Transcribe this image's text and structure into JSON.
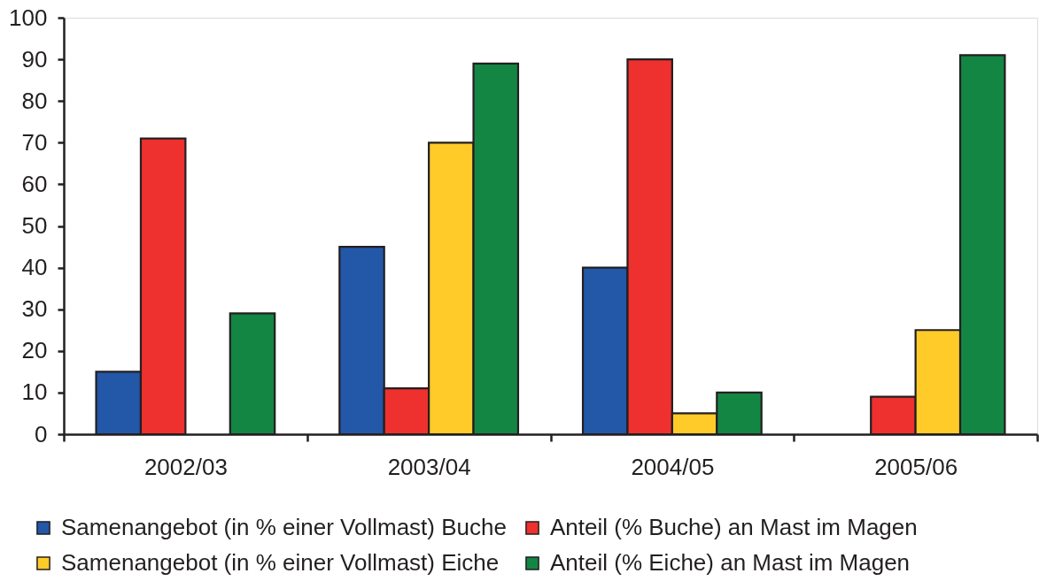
{
  "chart_data": {
    "type": "bar",
    "categories": [
      "2002/03",
      "2003/04",
      "2004/05",
      "2005/06"
    ],
    "series": [
      {
        "name": "Samenangebot (in % einer Vollmast) Buche",
        "color": "#2357a8",
        "values": [
          15,
          45,
          40,
          null
        ]
      },
      {
        "name": "Anteil (% Buche) an Mast im Magen",
        "color": "#ee312e",
        "values": [
          71,
          11,
          90,
          9
        ]
      },
      {
        "name": "Samenangebot (in % einer Vollmast) Eiche",
        "color": "#ffcb29",
        "values": [
          null,
          70,
          5,
          25
        ]
      },
      {
        "name": "Anteil (% Eiche) an Mast im Magen",
        "color": "#138644",
        "values": [
          29,
          89,
          10,
          91
        ]
      }
    ],
    "ylim": [
      0,
      100
    ],
    "yticks": [
      0,
      10,
      20,
      30,
      40,
      50,
      60,
      70,
      80,
      90,
      100
    ],
    "legend": "bottom"
  }
}
